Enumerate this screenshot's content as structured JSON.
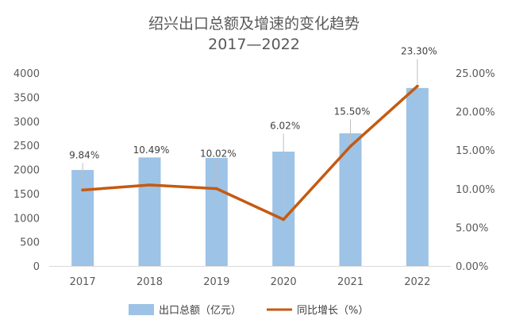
{
  "chart_data": {
    "type": "bar+line",
    "title": "绍兴出口总额及增速的变化趋势",
    "subtitle": "2017—2022",
    "categories": [
      "2017",
      "2018",
      "2019",
      "2020",
      "2021",
      "2022"
    ],
    "series": [
      {
        "name": "出口总额（亿元）",
        "type": "bar",
        "axis": "left",
        "values": [
          1990,
          2250,
          2240,
          2370,
          2750,
          3690
        ],
        "color": "#9DC3E6"
      },
      {
        "name": "同比增长（%）",
        "type": "line",
        "axis": "right",
        "values": [
          9.84,
          10.49,
          10.02,
          6.02,
          15.5,
          23.3
        ],
        "labels": [
          "9.84%",
          "10.49%",
          "10.02%",
          "6.02%",
          "15.50%",
          "23.30%"
        ],
        "color": "#C55A11"
      }
    ],
    "y_left": {
      "min": 0,
      "max": 4000,
      "step": 500,
      "ticks": [
        "0",
        "500",
        "1000",
        "1500",
        "2000",
        "2500",
        "3000",
        "3500",
        "4000"
      ]
    },
    "y_right": {
      "min": 0,
      "max": 25,
      "step": 5,
      "ticks": [
        "0.00%",
        "5.00%",
        "10.00%",
        "15.00%",
        "20.00%",
        "25.00%"
      ]
    },
    "grid": false,
    "legend_position": "bottom"
  }
}
